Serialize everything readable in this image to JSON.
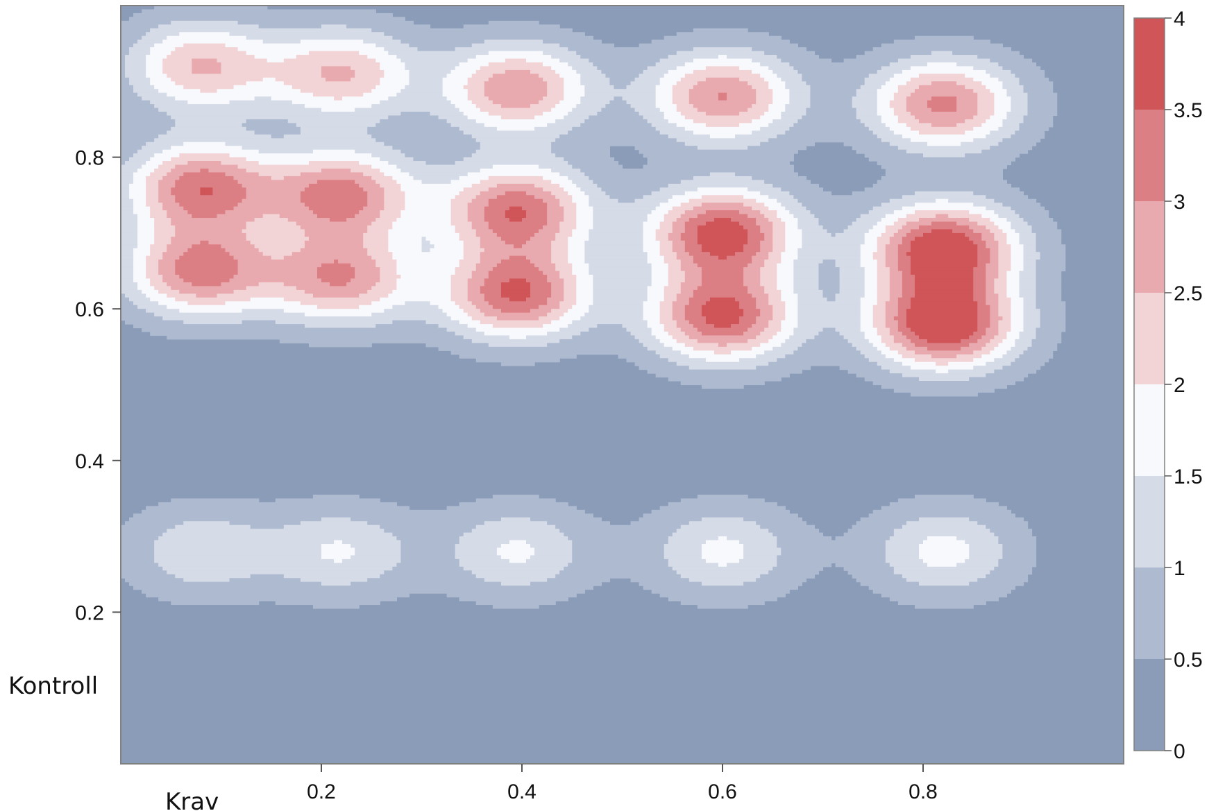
{
  "chart_data": {
    "type": "heatmap",
    "subtype": "filled-contour",
    "title": "",
    "xlabel": "Krav",
    "ylabel": "Kontroll",
    "xlim": [
      0,
      1
    ],
    "ylim": [
      0,
      1
    ],
    "x_ticks": [
      0.2,
      0.4,
      0.6,
      0.8
    ],
    "y_ticks": [
      0.2,
      0.4,
      0.6,
      0.8
    ],
    "x_tick_labels": [
      "0.2",
      "0.4",
      "0.6",
      "0.8"
    ],
    "y_tick_labels": [
      "0.2",
      "0.4",
      "0.6",
      "0.8"
    ],
    "grid": false,
    "legend": "right",
    "colorbar": {
      "levels": [
        0,
        0.5,
        1,
        1.5,
        2,
        2.5,
        3,
        3.5,
        4
      ],
      "labels": [
        "0",
        "0.5",
        "1",
        "1.5",
        "2",
        "2.5",
        "3",
        "3.5",
        "4"
      ],
      "colors": [
        "#8a9cb8",
        "#aebad0",
        "#d5dbe7",
        "#f8f9fc",
        "#f2d3d6",
        "#e8aaae",
        "#dc7f84",
        "#cf5558"
      ]
    },
    "peaks": [
      {
        "x": 0.08,
        "y": 0.92,
        "z": 2.3
      },
      {
        "x": 0.22,
        "y": 0.91,
        "z": 2.3
      },
      {
        "x": 0.395,
        "y": 0.89,
        "z": 2.7
      },
      {
        "x": 0.6,
        "y": 0.88,
        "z": 2.8
      },
      {
        "x": 0.82,
        "y": 0.87,
        "z": 2.9
      },
      {
        "x": 0.08,
        "y": 0.76,
        "z": 3.1
      },
      {
        "x": 0.22,
        "y": 0.75,
        "z": 3.0
      },
      {
        "x": 0.395,
        "y": 0.73,
        "z": 3.2
      },
      {
        "x": 0.6,
        "y": 0.7,
        "z": 3.6
      },
      {
        "x": 0.82,
        "y": 0.68,
        "z": 3.8
      },
      {
        "x": 0.08,
        "y": 0.65,
        "z": 3.0
      },
      {
        "x": 0.22,
        "y": 0.64,
        "z": 2.7
      },
      {
        "x": 0.395,
        "y": 0.62,
        "z": 3.3
      },
      {
        "x": 0.6,
        "y": 0.59,
        "z": 3.4
      },
      {
        "x": 0.82,
        "y": 0.58,
        "z": 3.9
      },
      {
        "x": 0.08,
        "y": 0.28,
        "z": 1.2
      },
      {
        "x": 0.22,
        "y": 0.28,
        "z": 1.3
      },
      {
        "x": 0.395,
        "y": 0.28,
        "z": 1.35
      },
      {
        "x": 0.6,
        "y": 0.28,
        "z": 1.4
      },
      {
        "x": 0.82,
        "y": 0.28,
        "z": 1.45
      }
    ]
  }
}
